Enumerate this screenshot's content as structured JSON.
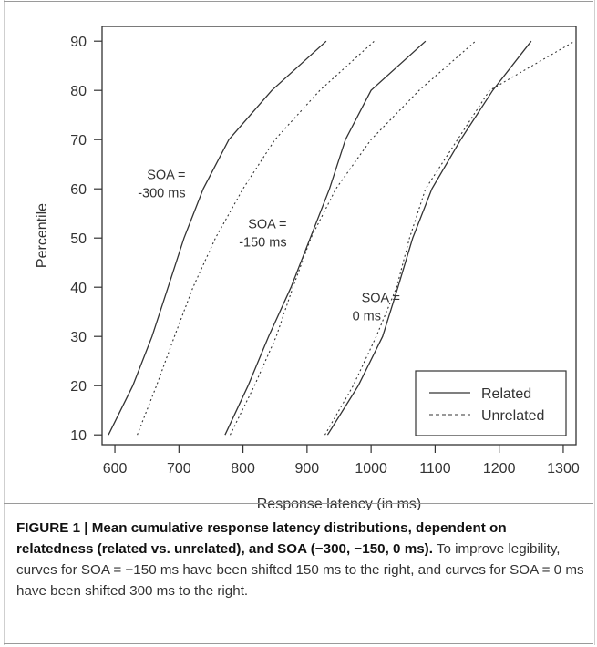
{
  "chart_data": {
    "type": "line",
    "xlabel": "Response latency (in ms)",
    "ylabel": "Percentile",
    "xlim": [
      580,
      1320
    ],
    "ylim": [
      8,
      93
    ],
    "xticks": [
      600,
      700,
      800,
      900,
      1000,
      1100,
      1200,
      1300
    ],
    "yticks": [
      10,
      20,
      30,
      40,
      50,
      60,
      70,
      80,
      90
    ],
    "legend": {
      "placement": "bottom-right",
      "related_label": "Related",
      "unrelated_label": "Unrelated"
    },
    "groups": [
      {
        "label_line1": "SOA =",
        "label_line2": "-300 ms",
        "label_at": [
          650,
          62
        ],
        "related": {
          "y": [
            10,
            20,
            30,
            40,
            50,
            60,
            70,
            80,
            90
          ],
          "x": [
            590,
            628,
            658,
            683,
            708,
            738,
            778,
            845,
            930
          ]
        },
        "unrelated": {
          "y": [
            10,
            20,
            30,
            40,
            50,
            60,
            70,
            80,
            90
          ],
          "x": [
            635,
            665,
            693,
            722,
            757,
            800,
            850,
            920,
            1005
          ]
        }
      },
      {
        "label_line1": "SOA =",
        "label_line2": "-150 ms",
        "label_at": [
          808,
          52
        ],
        "related": {
          "y": [
            10,
            20,
            30,
            40,
            50,
            60,
            70,
            80,
            90
          ],
          "x": [
            772,
            808,
            840,
            875,
            905,
            935,
            960,
            1000,
            1085
          ]
        },
        "unrelated": {
          "y": [
            10,
            20,
            30,
            40,
            50,
            60,
            70,
            80,
            90
          ],
          "x": [
            780,
            818,
            852,
            878,
            906,
            945,
            1000,
            1075,
            1163
          ]
        }
      },
      {
        "label_line1": "SOA =",
        "label_line2": "0 ms",
        "label_at": [
          985,
          37
        ],
        "related": {
          "y": [
            10,
            20,
            30,
            40,
            50,
            60,
            70,
            80,
            90
          ],
          "x": [
            932,
            980,
            1018,
            1042,
            1065,
            1095,
            1140,
            1190,
            1250
          ]
        },
        "unrelated": {
          "y": [
            10,
            20,
            30,
            40,
            50,
            60,
            70,
            80,
            90
          ],
          "x": [
            928,
            972,
            1008,
            1040,
            1060,
            1085,
            1135,
            1185,
            1318
          ]
        }
      }
    ]
  },
  "caption": {
    "bold": "FIGURE 1 | Mean cumulative response latency distributions, dependent on relatedness (related vs. unrelated), and SOA (−300, −150, 0 ms).",
    "text": " To improve legibility, curves for SOA = −150 ms have been shifted 150 ms to the right, and curves for SOA = 0 ms have been shifted 300 ms to the right."
  },
  "colors": {
    "line": "#333333",
    "axis": "#333333"
  }
}
